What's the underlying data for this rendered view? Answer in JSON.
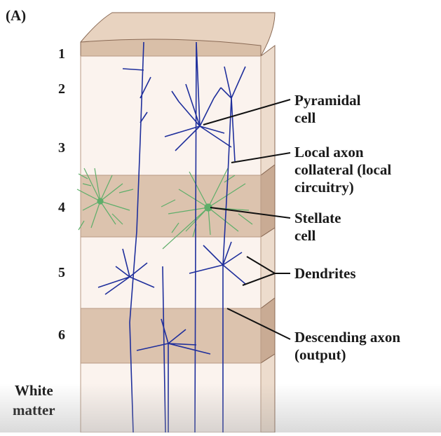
{
  "panel_label": "(A)",
  "layers": [
    "1",
    "2",
    "3",
    "4",
    "5",
    "6"
  ],
  "white_matter": [
    "White",
    "matter"
  ],
  "callouts": {
    "pyramidal": [
      "Pyramidal",
      "cell"
    ],
    "local_axon": [
      "Local axon",
      "collateral (local",
      "circuitry)"
    ],
    "stellate": [
      "Stellate",
      "cell"
    ],
    "dendrites": [
      "Dendrites"
    ],
    "descending": [
      "Descending axon",
      "(output)"
    ]
  },
  "colors": {
    "block_light": "#fbf3ee",
    "block_dark": "#dcc3ae",
    "block_side": "#e6d2c2",
    "block_top": "#ead8c6",
    "neuron_blue": "#1f2f9c",
    "stellate_green": "#5fae6a"
  }
}
